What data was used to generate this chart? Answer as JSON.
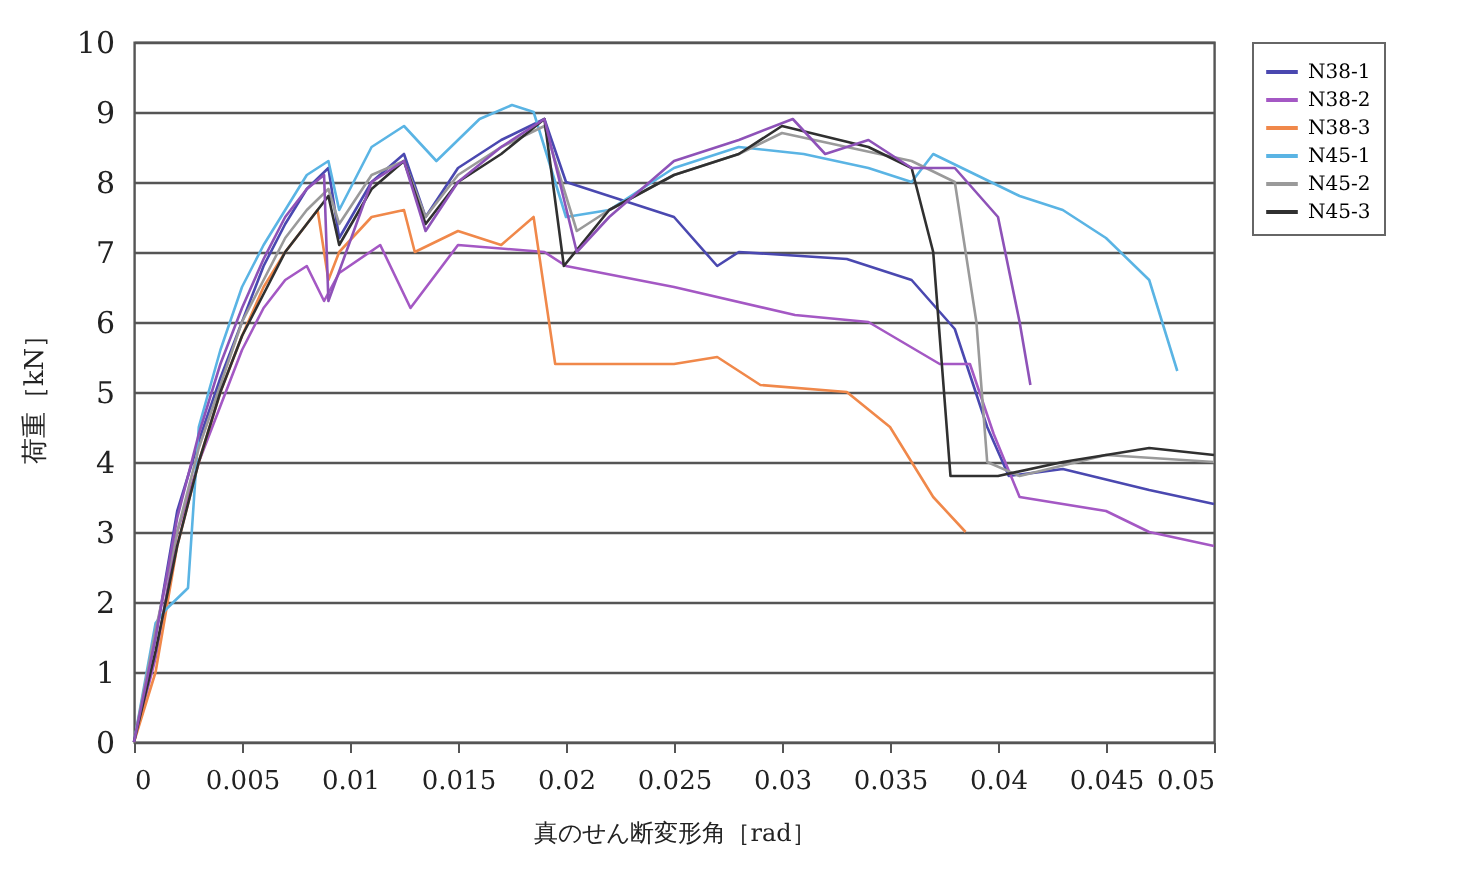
{
  "chart_data": {
    "type": "line",
    "xlabel": "真のせん断変形角［rad］",
    "ylabel": "荷重［kN］",
    "xlim": [
      0,
      0.05
    ],
    "xticks": [
      0,
      0.005,
      0.01,
      0.015,
      0.02,
      0.025,
      0.03,
      0.035,
      0.04,
      0.045,
      0.05
    ],
    "ylim": [
      0,
      10
    ],
    "yticks": [
      0,
      1,
      2,
      3,
      4,
      5,
      6,
      7,
      8,
      9,
      10
    ],
    "grid": "y",
    "legend": "right",
    "marker": "none",
    "line_style": "solid",
    "series": [
      {
        "name": "N38-1",
        "color": "#4a48b0",
        "x": [
          0,
          0.001,
          0.002,
          0.003,
          0.004,
          0.005,
          0.006,
          0.007,
          0.008,
          0.009,
          0.0095,
          0.011,
          0.0125,
          0.0135,
          0.015,
          0.017,
          0.019,
          0.02,
          0.022,
          0.025,
          0.027,
          0.028,
          0.033,
          0.036,
          0.038,
          0.0395,
          0.0405,
          0.043,
          0.047,
          0.05
        ],
        "values": [
          0,
          1.5,
          3.3,
          4.3,
          5.2,
          6.0,
          6.8,
          7.4,
          7.9,
          8.2,
          7.2,
          8.0,
          8.4,
          7.5,
          8.2,
          8.6,
          8.9,
          8.0,
          7.8,
          7.5,
          6.8,
          7.0,
          6.9,
          6.6,
          5.9,
          4.5,
          3.8,
          3.9,
          3.6,
          3.4
        ]
      },
      {
        "name": "N38-2",
        "color": "#a458c4",
        "x": [
          0,
          0.001,
          0.002,
          0.003,
          0.004,
          0.005,
          0.006,
          0.007,
          0.008,
          0.0088,
          0.0095,
          0.0114,
          0.0128,
          0.015,
          0.019,
          0.02,
          0.025,
          0.0306,
          0.034,
          0.0373,
          0.0387,
          0.0398,
          0.041,
          0.045,
          0.047,
          0.05
        ],
        "values": [
          0,
          1.2,
          3.0,
          4.0,
          4.8,
          5.6,
          6.2,
          6.6,
          6.8,
          6.3,
          6.7,
          7.1,
          6.2,
          7.1,
          7.0,
          6.8,
          6.5,
          6.1,
          6.0,
          5.4,
          5.4,
          4.4,
          3.5,
          3.3,
          3.0,
          2.8
        ]
      },
      {
        "name": "N38-3",
        "color": "#f0884a",
        "x": [
          0,
          0.001,
          0.002,
          0.003,
          0.004,
          0.005,
          0.006,
          0.007,
          0.008,
          0.0085,
          0.009,
          0.0095,
          0.011,
          0.0125,
          0.013,
          0.015,
          0.017,
          0.0185,
          0.0195,
          0.025,
          0.027,
          0.029,
          0.033,
          0.035,
          0.037,
          0.0385
        ],
        "values": [
          0,
          1.0,
          2.8,
          4.0,
          5.0,
          5.8,
          6.5,
          7.0,
          7.4,
          7.6,
          6.6,
          7.0,
          7.5,
          7.6,
          7.0,
          7.3,
          7.1,
          7.5,
          5.4,
          5.4,
          5.5,
          5.1,
          5.0,
          4.5,
          3.5,
          3.0
        ]
      },
      {
        "name": "N45-1",
        "color": "#5ab4e4",
        "x": [
          0,
          0.001,
          0.0015,
          0.0025,
          0.003,
          0.004,
          0.005,
          0.006,
          0.007,
          0.008,
          0.009,
          0.0095,
          0.011,
          0.0125,
          0.014,
          0.016,
          0.0175,
          0.0185,
          0.02,
          0.022,
          0.025,
          0.028,
          0.031,
          0.034,
          0.036,
          0.037,
          0.039,
          0.041,
          0.043,
          0.045,
          0.047,
          0.0483
        ],
        "values": [
          0,
          1.7,
          1.9,
          2.2,
          4.5,
          5.6,
          6.5,
          7.1,
          7.6,
          8.1,
          8.3,
          7.6,
          8.5,
          8.8,
          8.3,
          8.9,
          9.1,
          9.0,
          7.5,
          7.6,
          8.2,
          8.5,
          8.4,
          8.2,
          8.0,
          8.4,
          8.1,
          7.8,
          7.6,
          7.2,
          6.6,
          5.3
        ]
      },
      {
        "name": "N45-2",
        "color": "#9a9a9a",
        "x": [
          0,
          0.001,
          0.002,
          0.003,
          0.004,
          0.005,
          0.006,
          0.007,
          0.008,
          0.009,
          0.0095,
          0.011,
          0.0125,
          0.0135,
          0.015,
          0.017,
          0.019,
          0.0205,
          0.022,
          0.025,
          0.028,
          0.03,
          0.033,
          0.036,
          0.038,
          0.039,
          0.0395,
          0.041,
          0.045,
          0.05
        ],
        "values": [
          0,
          1.6,
          3.0,
          4.2,
          5.1,
          6.0,
          6.6,
          7.2,
          7.6,
          7.9,
          7.4,
          8.1,
          8.3,
          7.5,
          8.1,
          8.5,
          8.8,
          7.3,
          7.6,
          8.1,
          8.4,
          8.7,
          8.5,
          8.3,
          8.0,
          6.0,
          4.0,
          3.8,
          4.1,
          4.0
        ]
      },
      {
        "name": "N45-3",
        "color": "#303030",
        "x": [
          0,
          0.001,
          0.002,
          0.003,
          0.004,
          0.005,
          0.006,
          0.007,
          0.008,
          0.009,
          0.0095,
          0.011,
          0.0125,
          0.0135,
          0.015,
          0.017,
          0.019,
          0.0199,
          0.022,
          0.025,
          0.028,
          0.03,
          0.034,
          0.036,
          0.037,
          0.0378,
          0.04,
          0.043,
          0.047,
          0.05
        ],
        "values": [
          0,
          1.3,
          2.8,
          4.0,
          5.0,
          5.8,
          6.4,
          7.0,
          7.4,
          7.8,
          7.1,
          7.9,
          8.3,
          7.4,
          8.0,
          8.4,
          8.9,
          6.8,
          7.6,
          8.1,
          8.4,
          8.8,
          8.5,
          8.2,
          7.0,
          3.8,
          3.8,
          4.0,
          4.2,
          4.1
        ]
      },
      {
        "color": "#8e52b8",
        "x": [
          0,
          0.001,
          0.002,
          0.003,
          0.004,
          0.005,
          0.006,
          0.007,
          0.008,
          0.0088,
          0.009,
          0.011,
          0.0125,
          0.0135,
          0.015,
          0.017,
          0.019,
          0.0205,
          0.022,
          0.025,
          0.028,
          0.0305,
          0.032,
          0.034,
          0.036,
          0.038,
          0.04,
          0.041,
          0.0415
        ],
        "values": [
          0,
          1.5,
          3.2,
          4.4,
          5.4,
          6.2,
          6.9,
          7.5,
          7.9,
          8.1,
          6.3,
          8.0,
          8.3,
          7.3,
          8.0,
          8.5,
          8.9,
          7.0,
          7.5,
          8.3,
          8.6,
          8.9,
          8.4,
          8.6,
          8.2,
          8.2,
          7.5,
          6.0,
          5.1
        ]
      }
    ]
  }
}
